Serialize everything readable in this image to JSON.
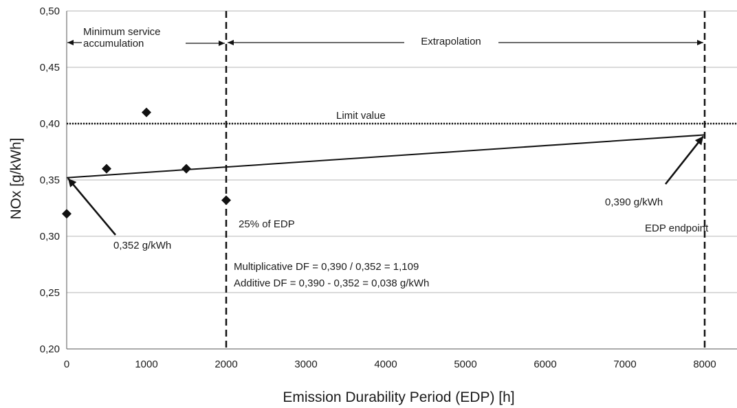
{
  "chart_data": {
    "type": "scatter",
    "xlabel": "Emission Durability Period (EDP) [h]",
    "ylabel": "NOx [g/kWh]",
    "xlim": [
      0,
      8000
    ],
    "ylim": [
      0.2,
      0.5
    ],
    "x_ticks": [
      0,
      1000,
      2000,
      3000,
      4000,
      5000,
      6000,
      7000,
      8000
    ],
    "x_tick_labels": [
      "0",
      "1000",
      "2000",
      "3000",
      "4000",
      "5000",
      "6000",
      "7000",
      "8000"
    ],
    "y_ticks": [
      0.2,
      0.25,
      0.3,
      0.35,
      0.4,
      0.45,
      0.5
    ],
    "y_tick_labels": [
      "0,20",
      "0,25",
      "0,30",
      "0,35",
      "0,40",
      "0,45",
      "0,50"
    ],
    "grid": "horizontal",
    "points": [
      {
        "x": 0,
        "y": 0.32
      },
      {
        "x": 500,
        "y": 0.36
      },
      {
        "x": 1000,
        "y": 0.41
      },
      {
        "x": 1500,
        "y": 0.36
      },
      {
        "x": 2000,
        "y": 0.332
      }
    ],
    "trend_line": {
      "x": [
        0,
        8000
      ],
      "y": [
        0.352,
        0.39
      ]
    },
    "limit_line": {
      "y": 0.4,
      "label": "Limit value"
    },
    "vertical_lines": [
      {
        "x": 2000
      },
      {
        "x": 8000
      }
    ],
    "region_labels": {
      "min_service_line1": "Minimum service",
      "min_service_line2": "accumulation",
      "extrapolation": "Extrapolation"
    },
    "annotations": {
      "start_value": "0,352 g/kWh",
      "end_value": "0,390 g/kWh",
      "quarter_edp": "25% of EDP",
      "edp_endpoint": "EDP endpoint",
      "multiplicative": "Multiplicative DF = 0,390 / 0,352 =  1,109",
      "additive": "Additive DF = 0,390 - 0,352 =  0,038 g/kWh"
    },
    "colors": {
      "marks": "#111111",
      "grid": "#b5b5b5"
    }
  }
}
